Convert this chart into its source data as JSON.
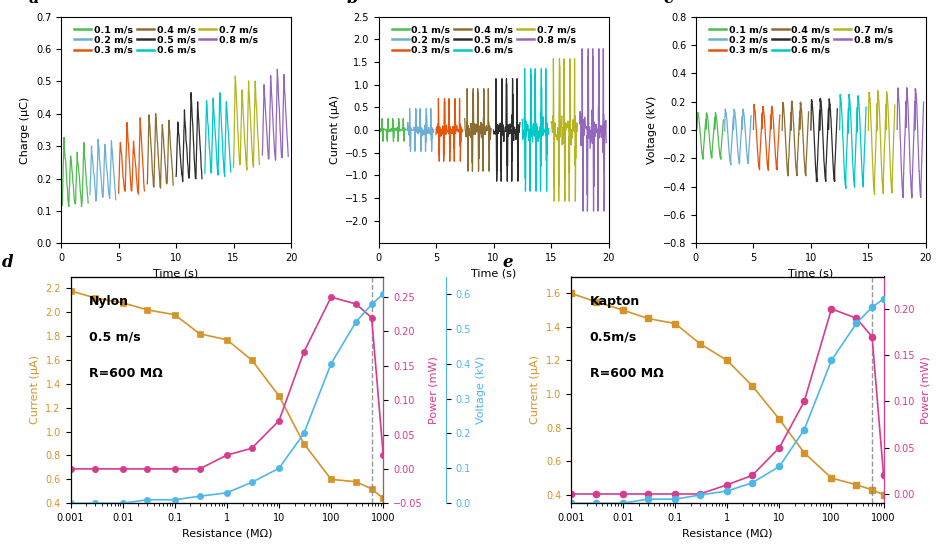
{
  "speeds": [
    "0.1 m/s",
    "0.2 m/s",
    "0.3 m/s",
    "0.4 m/s",
    "0.5 m/s",
    "0.6 m/s",
    "0.7 m/s",
    "0.8 m/s"
  ],
  "colors_a": [
    "#4dbd4d",
    "#6baed6",
    "#e6550d",
    "#8c6d31",
    "#2d2d2d",
    "#00c8c8",
    "#b5b520",
    "#9467bd"
  ],
  "colors_b": [
    "#4dbd4d",
    "#6baed6",
    "#e6550d",
    "#8c6d31",
    "#2d2d2d",
    "#00c8c8",
    "#b5b520",
    "#9467bd"
  ],
  "colors_c": [
    "#4dbd4d",
    "#6baed6",
    "#e6550d",
    "#8c6d31",
    "#2d2d2d",
    "#00c8c8",
    "#b5b520",
    "#9467bd"
  ],
  "panel_a_label": "Charge (μC)",
  "panel_b_label": "Current (μA)",
  "panel_c_label": "Voltage (kV)",
  "time_label": "Time (s)",
  "resist_label": "Resistance (MΩ)",
  "panel_d_text": [
    "Nylon",
    "0.5 m/s",
    "R=600 MΩ"
  ],
  "panel_e_text": [
    "Kapton",
    "0.5m/s",
    "R=600 MΩ"
  ],
  "resist_x": [
    0.001,
    0.003,
    0.01,
    0.03,
    0.1,
    0.3,
    1,
    3,
    10,
    30,
    100,
    300,
    600,
    1000
  ],
  "d_current": [
    2.18,
    2.12,
    2.08,
    2.02,
    1.98,
    1.82,
    1.77,
    1.6,
    1.3,
    0.9,
    0.6,
    0.58,
    0.52,
    0.44
  ],
  "d_power": [
    0.0,
    0.0,
    0.0,
    0.0,
    0.0,
    0.0,
    0.02,
    0.03,
    0.07,
    0.17,
    0.25,
    0.24,
    0.22,
    0.02
  ],
  "d_voltage": [
    0.0,
    0.0,
    0.0,
    0.01,
    0.01,
    0.02,
    0.03,
    0.06,
    0.1,
    0.2,
    0.4,
    0.52,
    0.57,
    0.6
  ],
  "e_current": [
    1.6,
    1.55,
    1.5,
    1.45,
    1.42,
    1.3,
    1.2,
    1.05,
    0.85,
    0.65,
    0.5,
    0.46,
    0.43,
    0.4
  ],
  "e_power": [
    0.0,
    0.0,
    0.0,
    0.0,
    0.0,
    0.0,
    0.01,
    0.02,
    0.05,
    0.1,
    0.2,
    0.19,
    0.17,
    0.02
  ],
  "e_voltage": [
    0.0,
    0.0,
    0.0,
    0.01,
    0.01,
    0.02,
    0.03,
    0.05,
    0.09,
    0.18,
    0.35,
    0.44,
    0.48,
    0.5
  ],
  "orange_color": "#d4942a",
  "pink_color": "#d63b8f",
  "blue_color": "#4db8e8"
}
